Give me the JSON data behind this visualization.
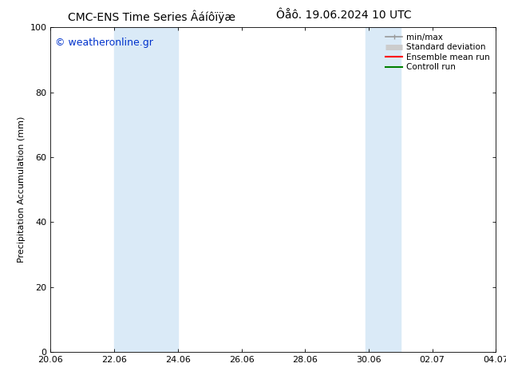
{
  "title_left": "CMC-ENS Time Series Âáíôïÿæ",
  "title_right": "Ôåô. 19.06.2024 10 UTC",
  "ylabel": "Precipitation Accumulation (mm)",
  "ylim": [
    0,
    100
  ],
  "yticks": [
    0,
    20,
    40,
    60,
    80,
    100
  ],
  "xtick_labels": [
    "20.06",
    "22.06",
    "24.06",
    "26.06",
    "28.06",
    "30.06",
    "02.07",
    "04.07"
  ],
  "xtick_positions": [
    0,
    2,
    4,
    6,
    8,
    10,
    12,
    14
  ],
  "xlim": [
    0,
    14
  ],
  "shaded_bands": [
    {
      "x_start": 2.0,
      "x_end": 4.0
    },
    {
      "x_start": 9.9,
      "x_end": 11.0
    }
  ],
  "shaded_color": "#daeaf7",
  "bg_color": "#ffffff",
  "legend_items": [
    {
      "label": "min/max",
      "color": "#999999",
      "lw": 1.2
    },
    {
      "label": "Standard deviation",
      "color": "#cccccc",
      "lw": 5
    },
    {
      "label": "Ensemble mean run",
      "color": "#ff0000",
      "lw": 1.5
    },
    {
      "label": "Controll run",
      "color": "#008000",
      "lw": 1.5
    }
  ],
  "watermark": "© weatheronline.gr",
  "watermark_color": "#0033cc",
  "watermark_fontsize": 9,
  "title_fontsize": 10,
  "axis_fontsize": 8,
  "ylabel_fontsize": 8,
  "legend_fontsize": 7.5
}
